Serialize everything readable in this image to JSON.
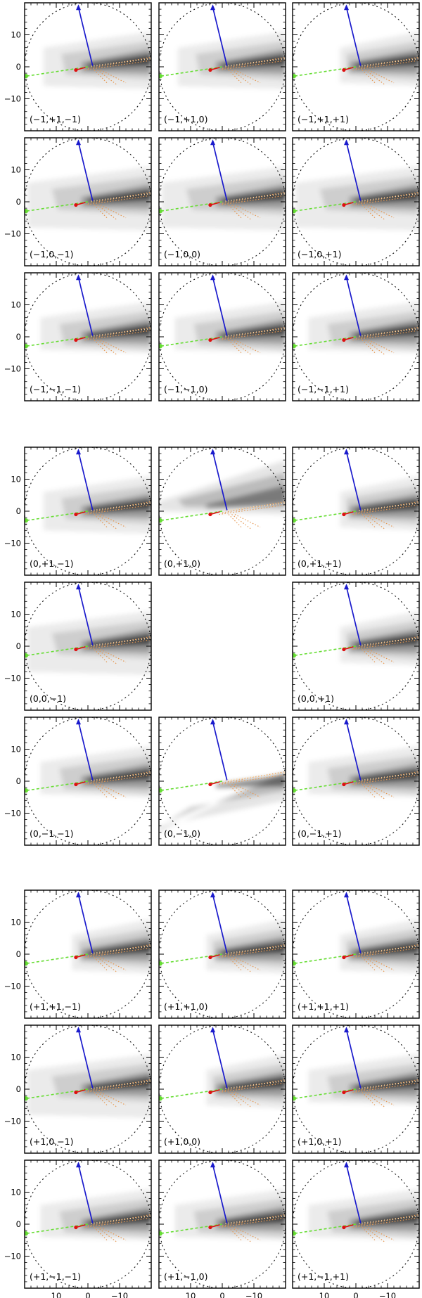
{
  "chart_data": {
    "type": "scatter",
    "description_free": true,
    "axes": {
      "xlim": [
        20,
        -20
      ],
      "ylim": [
        -20,
        20
      ],
      "y_ticks": [
        10,
        0,
        -10
      ],
      "x_ticks": [
        10,
        0,
        -10
      ],
      "y_tick_labels": [
        "10",
        "0",
        "−10"
      ],
      "x_tick_labels": [
        "10",
        "0",
        "−10"
      ],
      "grid": false
    },
    "colors": {
      "blue_vector": "#1a1acc",
      "green_line": "#66dd33",
      "red_vector": "#dd1111",
      "orange_dotted": "#e69a55",
      "circle": "#111111",
      "density": "#000000"
    },
    "groups": [
      {
        "panels": [
          {
            "label": "(−1,+1,−1)",
            "variant": "a"
          },
          {
            "label": "(−1,+1,0)",
            "variant": "a"
          },
          {
            "label": "(−1,+1,+1)",
            "variant": "b"
          },
          {
            "label": "(−1,0,−1)",
            "variant": "c"
          },
          {
            "label": "(−1,0,0)",
            "variant": "c"
          },
          {
            "label": "(−1,0,+1)",
            "variant": "c"
          },
          {
            "label": "(−1,−1,−1)",
            "variant": "d"
          },
          {
            "label": "(−1,−1,0)",
            "variant": "d"
          },
          {
            "label": "(−1,−1,+1)",
            "variant": "d"
          }
        ]
      },
      {
        "panels": [
          {
            "label": "(0,+1,−1)",
            "variant": "a"
          },
          {
            "label": "(0,+1,0)",
            "variant": "e"
          },
          {
            "label": "(0,+1,+1)",
            "variant": "b"
          },
          {
            "label": "(0,0,−1)",
            "variant": "c"
          },
          null,
          {
            "label": "(0,0,+1)",
            "variant": "b"
          },
          {
            "label": "(0,−1,−1)",
            "variant": "d"
          },
          {
            "label": "(0,−1,0)",
            "variant": "f"
          },
          {
            "label": "(0,−1,+1)",
            "variant": "d"
          }
        ]
      },
      {
        "panels": [
          {
            "label": "(+1,+1,−1)",
            "variant": "b"
          },
          {
            "label": "(+1,+1,0)",
            "variant": "b"
          },
          {
            "label": "(+1,+1,+1)",
            "variant": "b"
          },
          {
            "label": "(+1,0,−1)",
            "variant": "c"
          },
          {
            "label": "(+1,0,0)",
            "variant": "b"
          },
          {
            "label": "(+1,0,+1)",
            "variant": "d"
          },
          {
            "label": "(+1,−1,−1)",
            "variant": "d"
          },
          {
            "label": "(+1,−1,0)",
            "variant": "d"
          },
          {
            "label": "(+1,−1,+1)",
            "variant": "d"
          }
        ]
      }
    ],
    "vectors": {
      "blue": {
        "from": [
          -1.5,
          0.3
        ],
        "to": [
          3.0,
          19.5
        ]
      },
      "red": {
        "from": [
          0.8,
          -0.2
        ],
        "to": [
          3.8,
          -1.0
        ]
      },
      "green": {
        "from": [
          0.0,
          0.0
        ],
        "to": [
          20,
          -3.0
        ]
      },
      "green_marker": [
        19.6,
        -2.9
      ]
    }
  }
}
